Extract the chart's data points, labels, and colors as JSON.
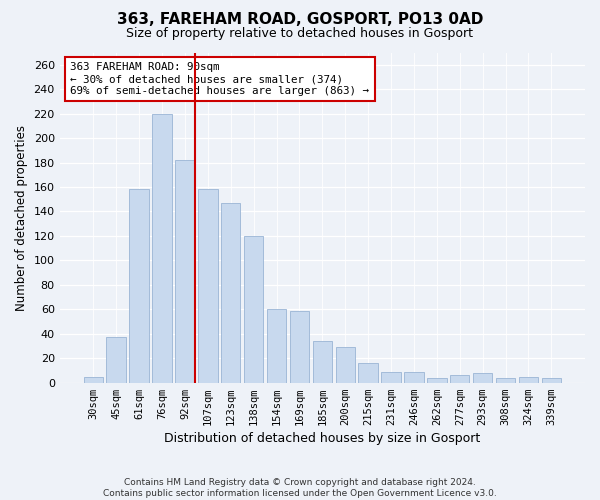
{
  "title": "363, FAREHAM ROAD, GOSPORT, PO13 0AD",
  "subtitle": "Size of property relative to detached houses in Gosport",
  "xlabel": "Distribution of detached houses by size in Gosport",
  "ylabel": "Number of detached properties",
  "bar_labels": [
    "30sqm",
    "45sqm",
    "61sqm",
    "76sqm",
    "92sqm",
    "107sqm",
    "123sqm",
    "138sqm",
    "154sqm",
    "169sqm",
    "185sqm",
    "200sqm",
    "215sqm",
    "231sqm",
    "246sqm",
    "262sqm",
    "277sqm",
    "293sqm",
    "308sqm",
    "324sqm",
    "339sqm"
  ],
  "bar_values": [
    5,
    37,
    158,
    220,
    182,
    158,
    147,
    120,
    60,
    59,
    34,
    29,
    16,
    9,
    9,
    4,
    6,
    8,
    4,
    5,
    4
  ],
  "bar_color": "#c8d9ee",
  "bar_edge_color": "#9ab5d5",
  "highlight_line_idx": 4,
  "highlight_line_color": "#cc0000",
  "ylim": [
    0,
    270
  ],
  "yticks": [
    0,
    20,
    40,
    60,
    80,
    100,
    120,
    140,
    160,
    180,
    200,
    220,
    240,
    260
  ],
  "annotation_line1": "363 FAREHAM ROAD: 90sqm",
  "annotation_line2": "← 30% of detached houses are smaller (374)",
  "annotation_line3": "69% of semi-detached houses are larger (863) →",
  "annotation_box_color": "#ffffff",
  "annotation_box_edge": "#cc0000",
  "footer_line1": "Contains HM Land Registry data © Crown copyright and database right 2024.",
  "footer_line2": "Contains public sector information licensed under the Open Government Licence v3.0.",
  "bg_color": "#eef2f8"
}
